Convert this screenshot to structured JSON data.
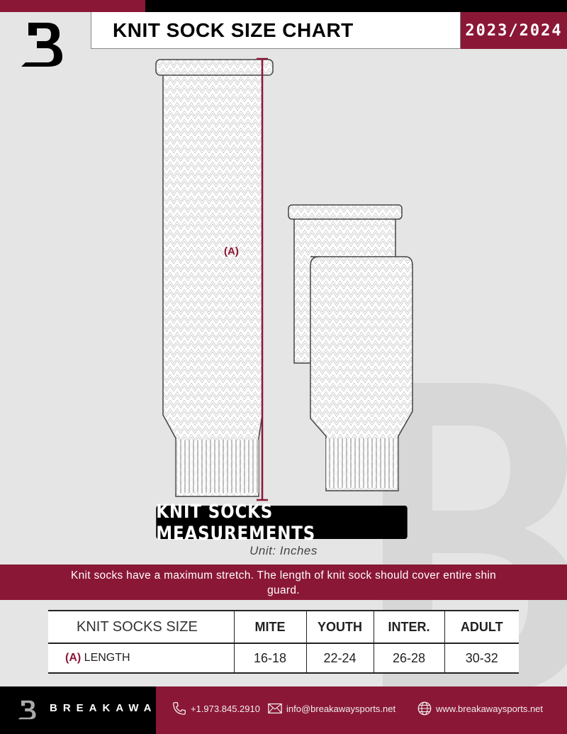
{
  "header": {
    "title": "KNIT SOCK SIZE CHART",
    "season": "2023/2024",
    "logo": "B"
  },
  "diagram": {
    "measure_label": "(A)"
  },
  "banner": "KNIT SOCKS MEASUREMENTS",
  "unit": "Unit: Inches",
  "note": "Knit socks have a maximum stretch. The length of knit sock should cover entire shin guard.",
  "table": {
    "header": [
      "KNIT SOCKS SIZE",
      "MITE",
      "YOUTH",
      "INTER.",
      "ADULT"
    ],
    "row": {
      "marker": "(A)",
      "label": "LENGTH",
      "values": [
        "16-18",
        "22-24",
        "26-28",
        "30-32"
      ]
    }
  },
  "footer": {
    "brand": "BREAKAWAY",
    "phone": "+1.973.845.2910",
    "email": "info@breakawaysports.net",
    "website": "www.breakawaysports.net"
  },
  "colors": {
    "accent": "#8b1736",
    "background": "#e4e5e4"
  }
}
